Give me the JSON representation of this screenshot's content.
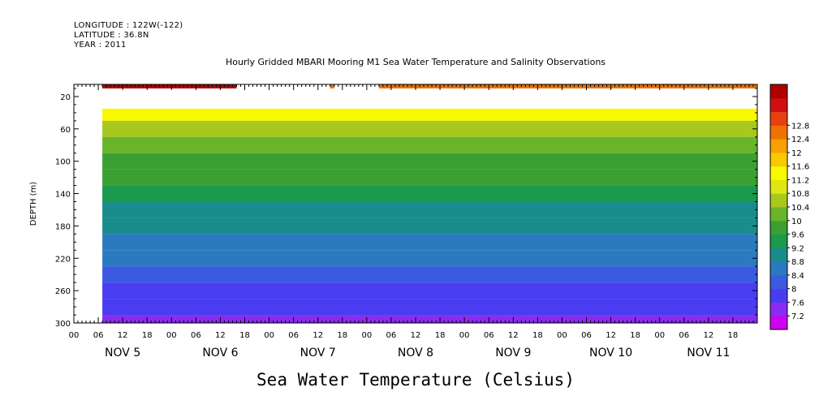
{
  "meta": {
    "longitude": "LONGITUDE : 122W(-122)",
    "latitude": "LATITUDE : 36.8N",
    "year": "YEAR : 2011"
  },
  "chart_data": {
    "type": "heatmap",
    "title": "Hourly Gridded MBARI Mooring M1 Sea Water Temperature and Salinity Observations",
    "variable_title": "Sea Water Temperature (Celsius)",
    "xlabel": "",
    "ylabel": "DEPTH (m)",
    "x_unit": "hours from NOV 5 00",
    "xlim": [
      0,
      168
    ],
    "x_hour_ticks": [
      "00",
      "06",
      "12",
      "18",
      "00",
      "06",
      "12",
      "18",
      "00",
      "06",
      "12",
      "18",
      "00",
      "06",
      "12",
      "18",
      "00",
      "06",
      "12",
      "18",
      "00",
      "06",
      "12",
      "18",
      "00",
      "06",
      "12",
      "18"
    ],
    "x_day_labels": [
      "NOV 5",
      "NOV 6",
      "NOV 7",
      "NOV 8",
      "NOV 9",
      "NOV 10",
      "NOV 11"
    ],
    "y_ticks": [
      20,
      60,
      100,
      140,
      180,
      220,
      260,
      300
    ],
    "ylim": [
      300,
      5
    ],
    "y_reversed": true,
    "data_start_hour": 7,
    "colorbar": {
      "levels": [
        7.2,
        7.6,
        8,
        8.4,
        8.8,
        9.2,
        9.6,
        10,
        10.4,
        10.8,
        11.2,
        11.6,
        12,
        12.4,
        12.8
      ],
      "labels": [
        "12.8",
        "12.4",
        "12",
        "11.6",
        "11.2",
        "10.8",
        "10.4",
        "10",
        "9.6",
        "9.2",
        "8.8",
        "8.4",
        "8",
        "7.6",
        "7.2"
      ],
      "colors": [
        "#d000f0",
        "#8a2cf0",
        "#4a3cf0",
        "#3a5ae0",
        "#2a7ac0",
        "#1a8c8c",
        "#1a9a4a",
        "#3aa032",
        "#6ab42a",
        "#a8c81e",
        "#e0e614",
        "#f8f800",
        "#f8c800",
        "#f8a000",
        "#f07000",
        "#e84010",
        "#d01010",
        "#b00000"
      ]
    },
    "depth_profiles": [
      {
        "depth": 40,
        "temp": 11.4
      },
      {
        "depth": 60,
        "temp": 10.6
      },
      {
        "depth": 80,
        "temp": 10.2
      },
      {
        "depth": 100,
        "temp": 9.9
      },
      {
        "depth": 120,
        "temp": 9.6
      },
      {
        "depth": 140,
        "temp": 9.35
      },
      {
        "depth": 160,
        "temp": 9.15
      },
      {
        "depth": 180,
        "temp": 8.95
      },
      {
        "depth": 200,
        "temp": 8.7
      },
      {
        "depth": 220,
        "temp": 8.45
      },
      {
        "depth": 240,
        "temp": 8.2
      },
      {
        "depth": 260,
        "temp": 7.95
      },
      {
        "depth": 280,
        "temp": 7.75
      },
      {
        "depth": 300,
        "temp": 7.4
      }
    ],
    "surface_band": {
      "depth_range": [
        5,
        10
      ],
      "segments": [
        {
          "start_hour": 7,
          "end_hour": 40,
          "temp": 12.9
        },
        {
          "start_hour": 63,
          "end_hour": 64,
          "temp": 12.7
        },
        {
          "start_hour": 75,
          "end_hour": 168,
          "temp": 12.5
        }
      ]
    }
  }
}
